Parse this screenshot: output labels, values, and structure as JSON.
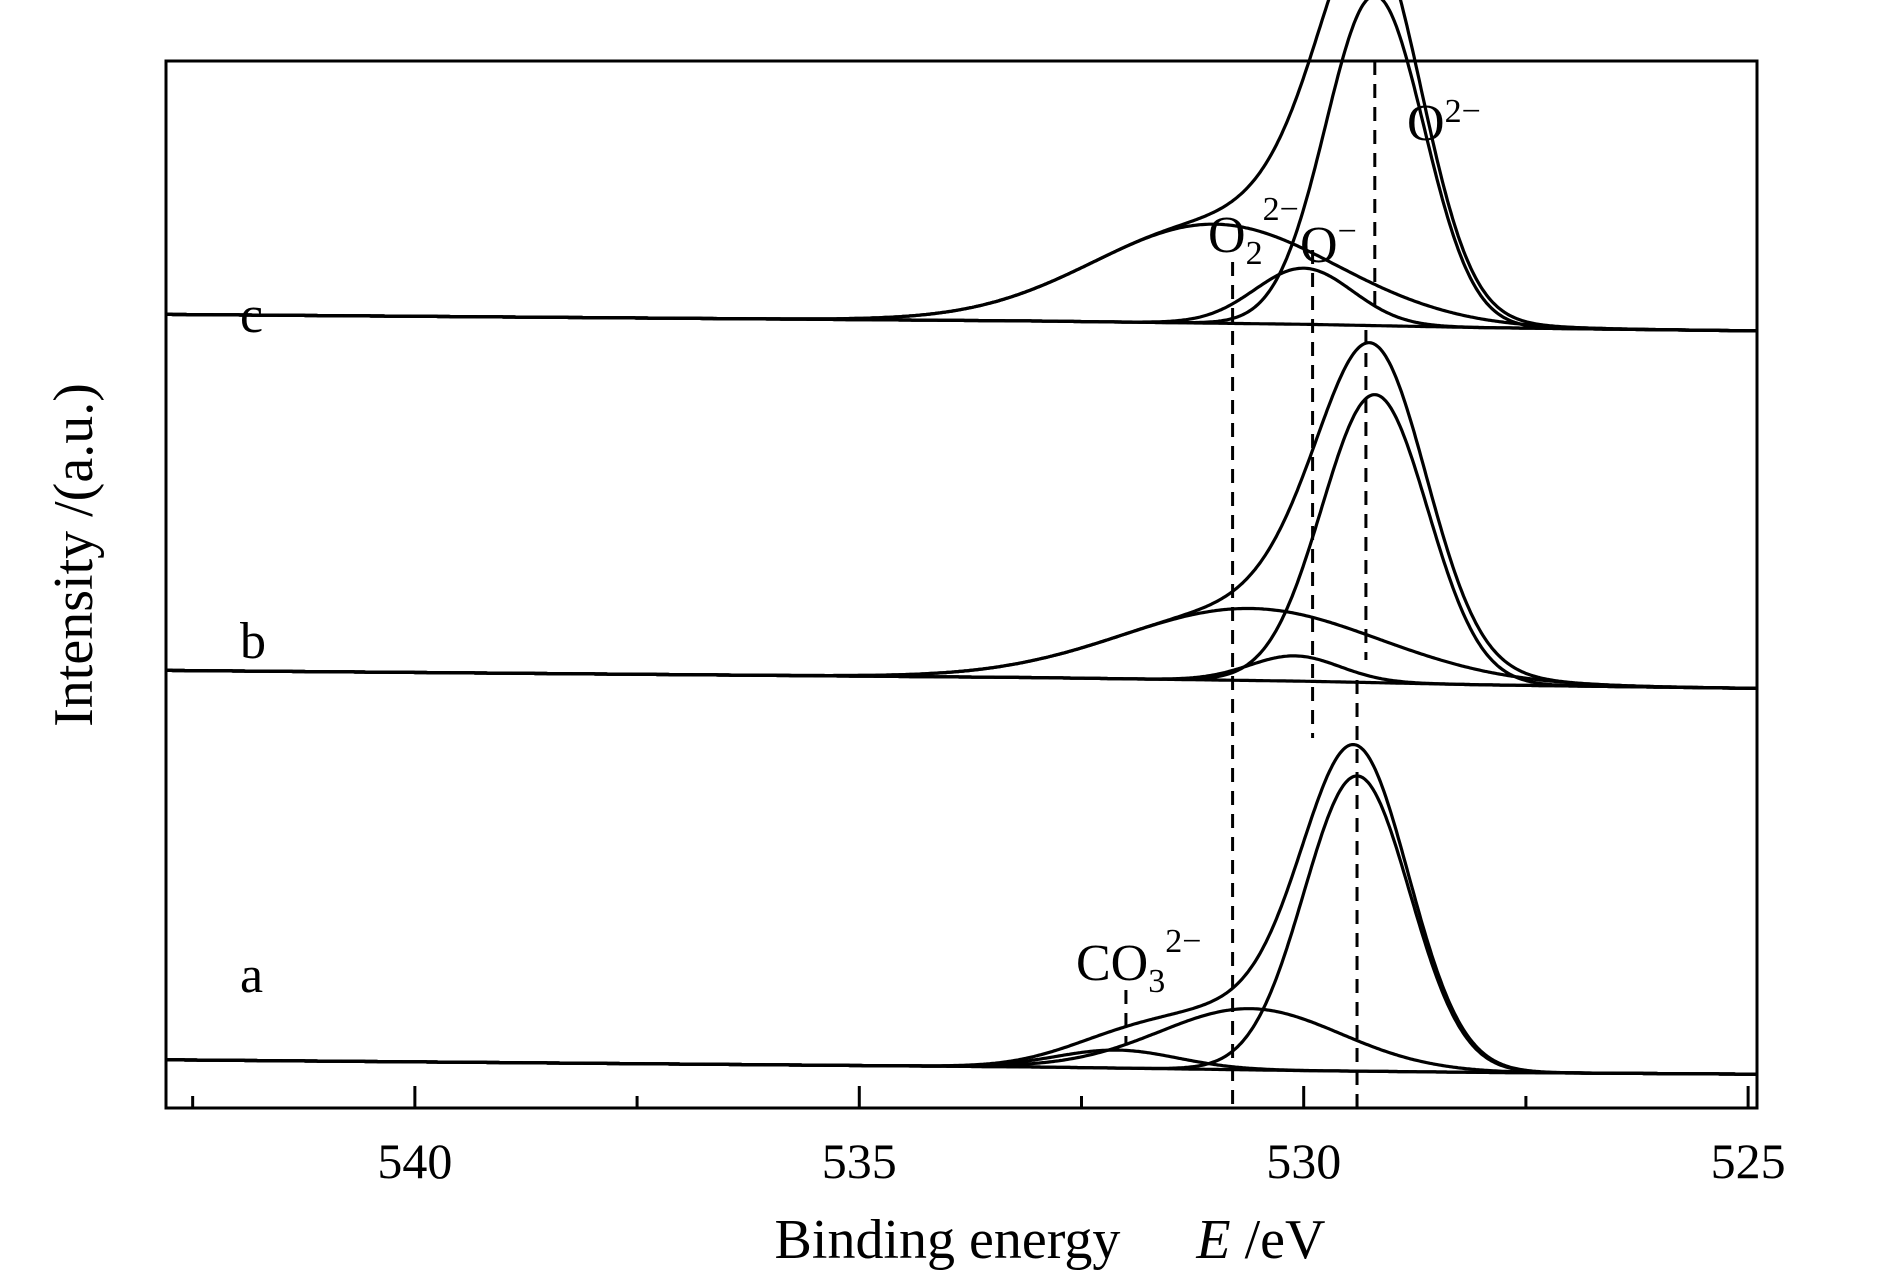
{
  "chart_data": {
    "type": "line",
    "xlabel": "Binding energy",
    "xlabel_symbol": "E",
    "xlabel_unit": "/eV",
    "ylabel": "Intensity /(a.u.)",
    "xlim": [
      542.8,
      524.9
    ],
    "x_reversed": true,
    "x_ticks": [
      540,
      535,
      530,
      525
    ],
    "x_minor_ticks": [
      542.5,
      537.5,
      532.5,
      527.5
    ],
    "y_ticks": [],
    "grid": false,
    "legend": "none",
    "reference_lines_eV": {
      "O2_2-": 530.8,
      "O-": 529.9,
      "O2-_c": 529.2,
      "O2-_b": 529.3,
      "O2-_a": 529.4,
      "CO3_2-": 532.0
    },
    "samples": [
      {
        "name": "c",
        "baseline": {
          "x": [
            542.8,
            533,
            530,
            528,
            524.9
          ],
          "y": [
            0.32,
            0.3,
            0.29,
            0.28,
            0.27
          ]
        },
        "peaks": [
          {
            "label": "O2-",
            "center": 529.2,
            "height": 1.0,
            "fwhm": 1.3
          },
          {
            "label": "O-",
            "center": 530.0,
            "height": 0.17,
            "fwhm": 1.3
          },
          {
            "label": "O2_2-",
            "center": 531.0,
            "height": 0.3,
            "fwhm": 3.2
          }
        ]
      },
      {
        "name": "b",
        "baseline": {
          "x": [
            542.8,
            533,
            530,
            528,
            524.9
          ],
          "y": [
            0.31,
            0.29,
            0.28,
            0.27,
            0.26
          ]
        },
        "peaks": [
          {
            "label": "O2-",
            "center": 529.2,
            "height": 0.8,
            "fwhm": 1.4
          },
          {
            "label": "O-",
            "center": 530.1,
            "height": 0.07,
            "fwhm": 1.2
          },
          {
            "label": "O2_2-",
            "center": 530.6,
            "height": 0.2,
            "fwhm": 3.4
          }
        ]
      },
      {
        "name": "a",
        "baseline": {
          "x": [
            542.8,
            533,
            530,
            528,
            524.9
          ],
          "y": [
            0.07,
            0.05,
            0.04,
            0.035,
            0.03
          ]
        },
        "peaks": [
          {
            "label": "O2-",
            "center": 529.4,
            "height": 0.82,
            "fwhm": 1.4
          },
          {
            "label": "O-",
            "center": 530.6,
            "height": 0.17,
            "fwhm": 2.4
          },
          {
            "label": "CO3_2-",
            "center": 532.1,
            "height": 0.05,
            "fwhm": 1.6
          }
        ]
      }
    ],
    "annotations": {
      "o2m": {
        "base": "O",
        "sup": "2−"
      },
      "o22m": {
        "base": "O",
        "sub": "2",
        "sup": "2−"
      },
      "om": {
        "base": "O",
        "sup": "−"
      },
      "co3": {
        "base": "CO",
        "sub": "3",
        "sup": "2−"
      }
    },
    "sample_labels": [
      "c",
      "b",
      "a"
    ]
  }
}
